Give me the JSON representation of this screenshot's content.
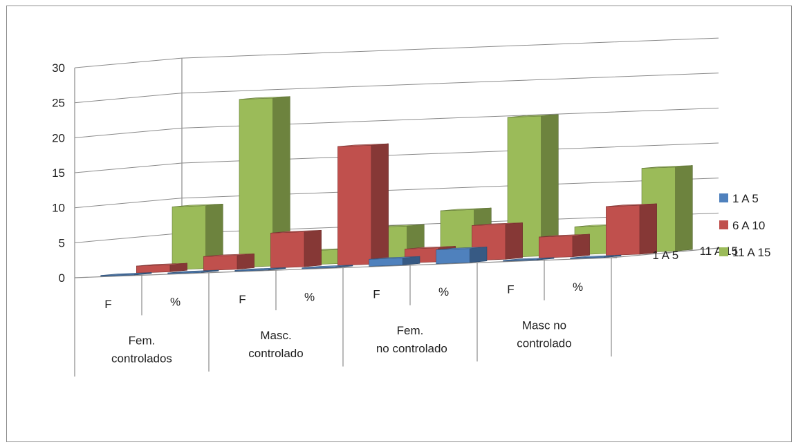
{
  "chart_data": {
    "type": "bar",
    "subtype": "3d-column",
    "ylim": [
      0,
      30
    ],
    "y_ticks": [
      "0",
      "5",
      "10",
      "15",
      "20",
      "25",
      "30"
    ],
    "grid": true,
    "legend_position": "right",
    "categories": [
      {
        "group": "Fem. controlados",
        "sub": "F"
      },
      {
        "group": "Fem. controlados",
        "sub": "%"
      },
      {
        "group": "Masc. controlado",
        "sub": "F"
      },
      {
        "group": "Masc. controlado",
        "sub": "%"
      },
      {
        "group": "Fem.  no controlado",
        "sub": "F"
      },
      {
        "group": "Fem.  no controlado",
        "sub": "%"
      },
      {
        "group": "Masc no controlado",
        "sub": "F"
      },
      {
        "group": "Masc no controlado",
        "sub": "%"
      }
    ],
    "groups": [
      "Fem. controlados",
      "Masc. controlado",
      "Fem.  no controlado",
      "Masc no controlado"
    ],
    "subs": [
      "F",
      "%",
      "F",
      "%",
      "F",
      "%",
      "F",
      "%"
    ],
    "depth_labels": [
      "11 A 15",
      "1 A 5"
    ],
    "series": [
      {
        "name": "1 A 5",
        "color": "#4f81bd",
        "values": [
          0,
          0,
          0,
          0,
          1,
          2,
          0,
          0
        ]
      },
      {
        "name": "6 A 10",
        "color": "#c0504d",
        "values": [
          1,
          2,
          5,
          17,
          2,
          5,
          3,
          7
        ]
      },
      {
        "name": "11 A 15",
        "color": "#9bbb59",
        "values": [
          9,
          24,
          2,
          5,
          7,
          20,
          4,
          12
        ]
      }
    ]
  }
}
